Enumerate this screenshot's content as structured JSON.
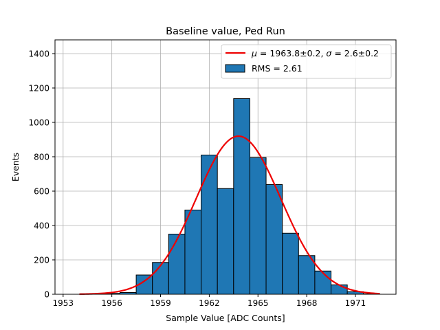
{
  "chart_data": {
    "type": "bar",
    "title": "Baseline value, Ped Run",
    "xlabel": "Sample Value [ADC Counts]",
    "ylabel": "Events",
    "xlim": [
      1952.5,
      1973.5
    ],
    "ylim": [
      0,
      1480
    ],
    "x_ticks": [
      1953,
      1956,
      1959,
      1962,
      1965,
      1968,
      1971
    ],
    "y_ticks": [
      0,
      200,
      400,
      600,
      800,
      1000,
      1200,
      1400
    ],
    "grid": true,
    "legend_position": "top-right",
    "bin_width": 1,
    "bins": [
      {
        "x": 1955,
        "value": 2
      },
      {
        "x": 1956,
        "value": 5
      },
      {
        "x": 1957,
        "value": 10
      },
      {
        "x": 1958,
        "value": 112
      },
      {
        "x": 1959,
        "value": 185
      },
      {
        "x": 1960,
        "value": 350
      },
      {
        "x": 1961,
        "value": 490
      },
      {
        "x": 1962,
        "value": 810
      },
      {
        "x": 1963,
        "value": 615
      },
      {
        "x": 1964,
        "value": 1138
      },
      {
        "x": 1965,
        "value": 795
      },
      {
        "x": 1966,
        "value": 638
      },
      {
        "x": 1967,
        "value": 355
      },
      {
        "x": 1968,
        "value": 225
      },
      {
        "x": 1969,
        "value": 135
      },
      {
        "x": 1970,
        "value": 55
      },
      {
        "x": 1971,
        "value": 15
      },
      {
        "x": 1972,
        "value": 2
      }
    ],
    "fit": {
      "mu": 1963.8,
      "sigma": 2.6,
      "amplitude": 920,
      "x_range": [
        1954,
        1972.5
      ],
      "color": "#ee0000"
    },
    "histogram_color": "#1f77b4",
    "legend": [
      {
        "series": "fit",
        "label_prefix": "μ = 1963.8±0.2, σ = 2.6±0.2"
      },
      {
        "series": "histogram",
        "label": "RMS = 2.61"
      }
    ]
  }
}
